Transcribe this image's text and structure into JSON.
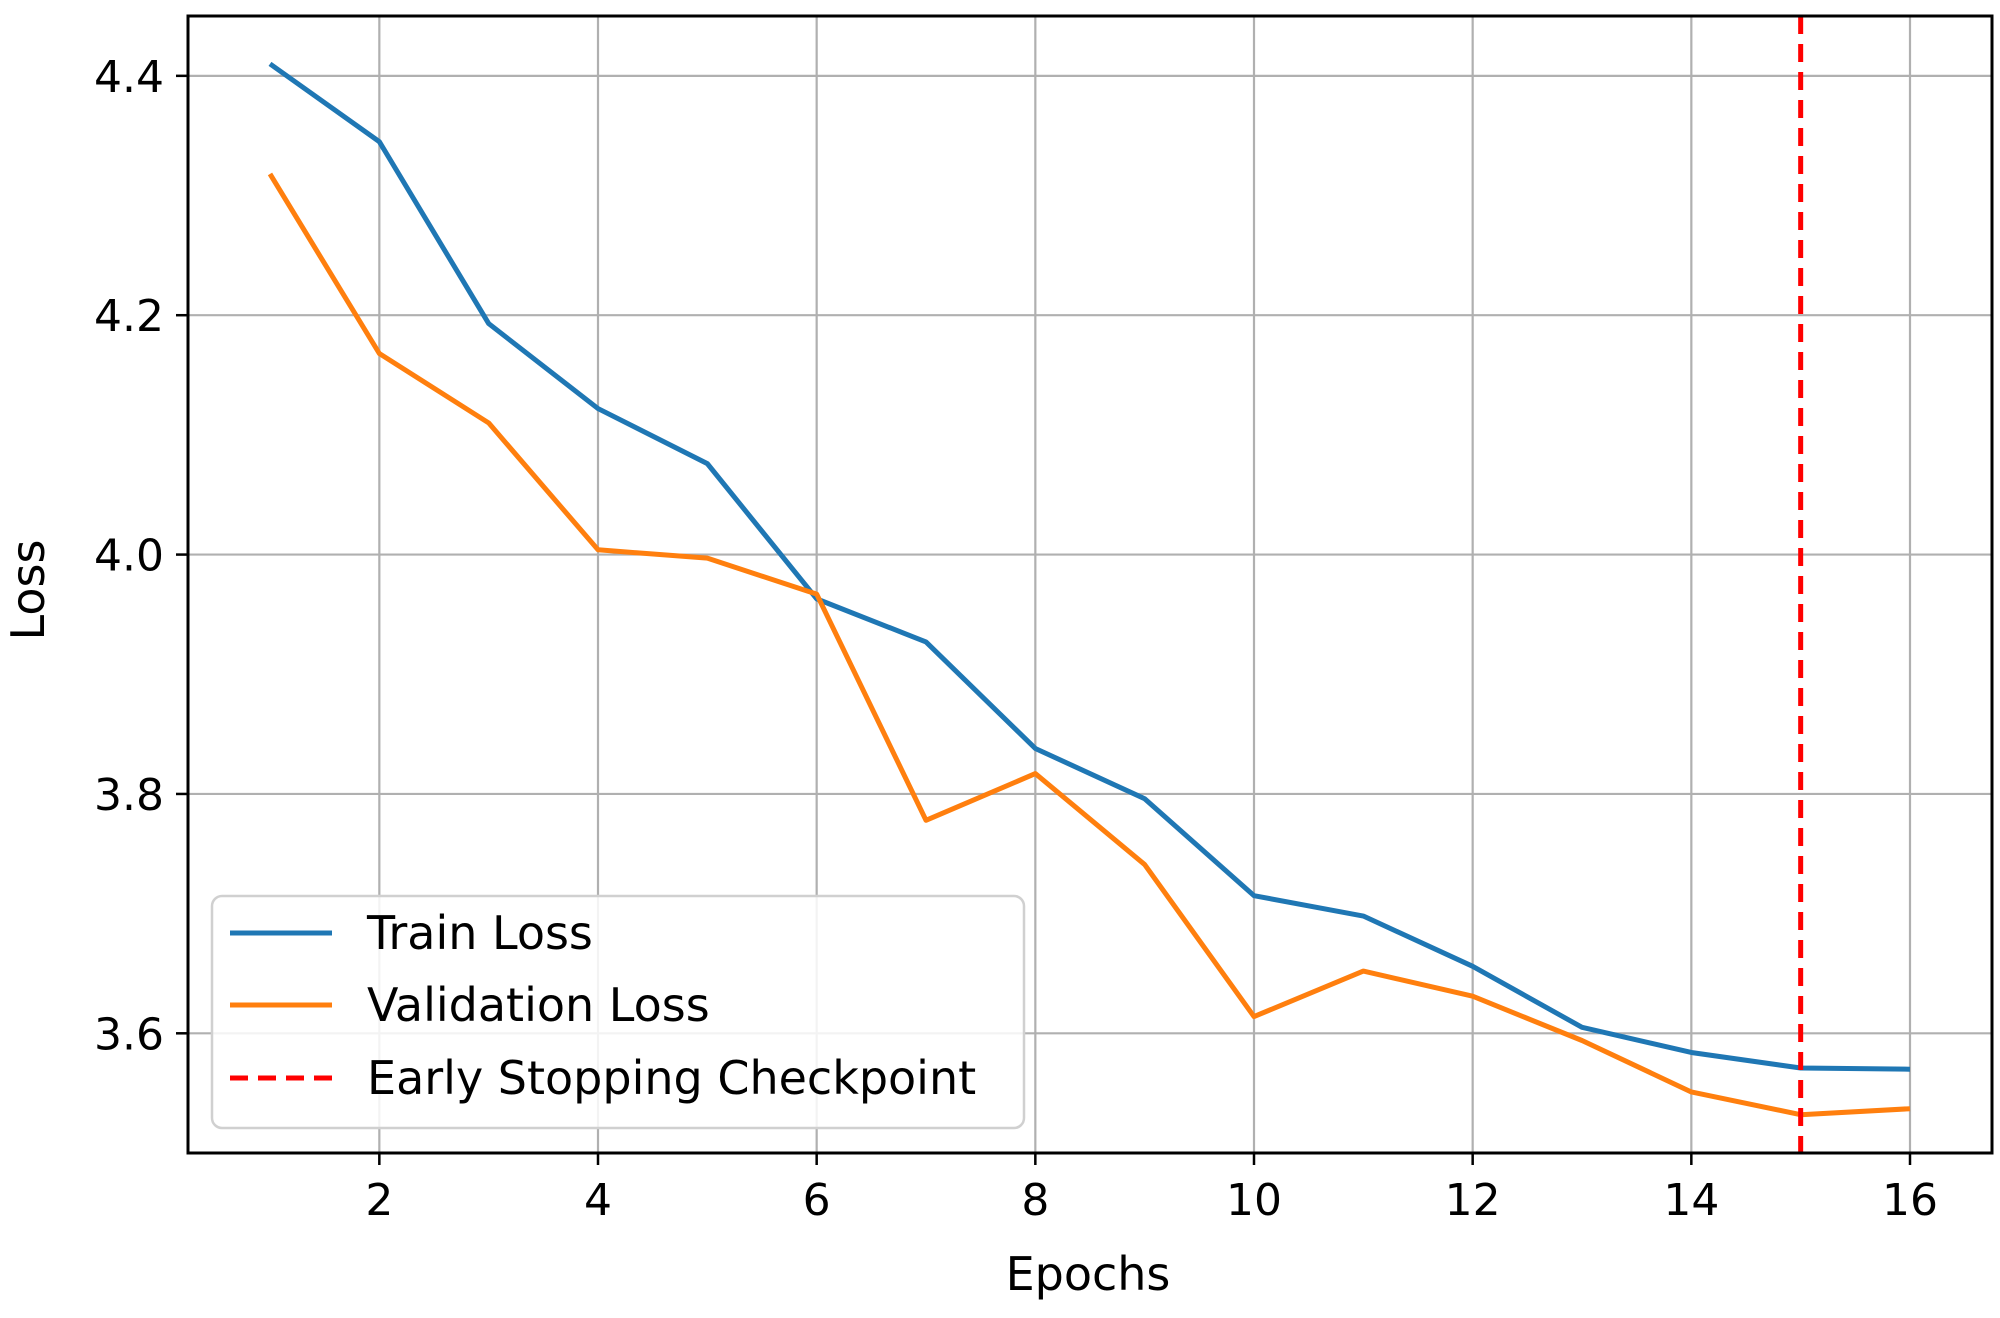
{
  "chart_data": {
    "type": "line",
    "title": "",
    "xlabel": "Epochs",
    "ylabel": "Loss",
    "xlim": [
      0.25,
      16.75
    ],
    "ylim": [
      3.5,
      4.45
    ],
    "xticks": [
      2,
      4,
      6,
      8,
      10,
      12,
      14,
      16
    ],
    "xtick_labels": [
      "2",
      "4",
      "6",
      "8",
      "10",
      "12",
      "14",
      "16"
    ],
    "yticks": [
      3.6,
      3.8,
      4.0,
      4.2,
      4.4
    ],
    "ytick_labels": [
      "3.6",
      "3.8",
      "4.0",
      "4.2",
      "4.4"
    ],
    "grid": true,
    "legend_position": "lower-left",
    "x": [
      1,
      2,
      3,
      4,
      5,
      6,
      7,
      8,
      9,
      10,
      11,
      12,
      13,
      14,
      15,
      16
    ],
    "series": [
      {
        "name": "Train Loss",
        "color": "#1f77b4",
        "style": "solid",
        "values": [
          4.41,
          4.345,
          4.193,
          4.122,
          4.076,
          3.963,
          3.927,
          3.838,
          3.796,
          3.715,
          3.698,
          3.656,
          3.605,
          3.584,
          3.571,
          3.57
        ]
      },
      {
        "name": "Validation Loss",
        "color": "#ff7f0e",
        "style": "solid",
        "values": [
          4.318,
          4.168,
          4.11,
          4.004,
          3.997,
          3.967,
          3.778,
          3.817,
          3.741,
          3.614,
          3.652,
          3.631,
          3.594,
          3.551,
          3.532,
          3.537
        ]
      }
    ],
    "vlines": [
      {
        "name": "Early Stopping Checkpoint",
        "x": 15,
        "color": "#ff0000",
        "style": "dashed"
      }
    ]
  }
}
